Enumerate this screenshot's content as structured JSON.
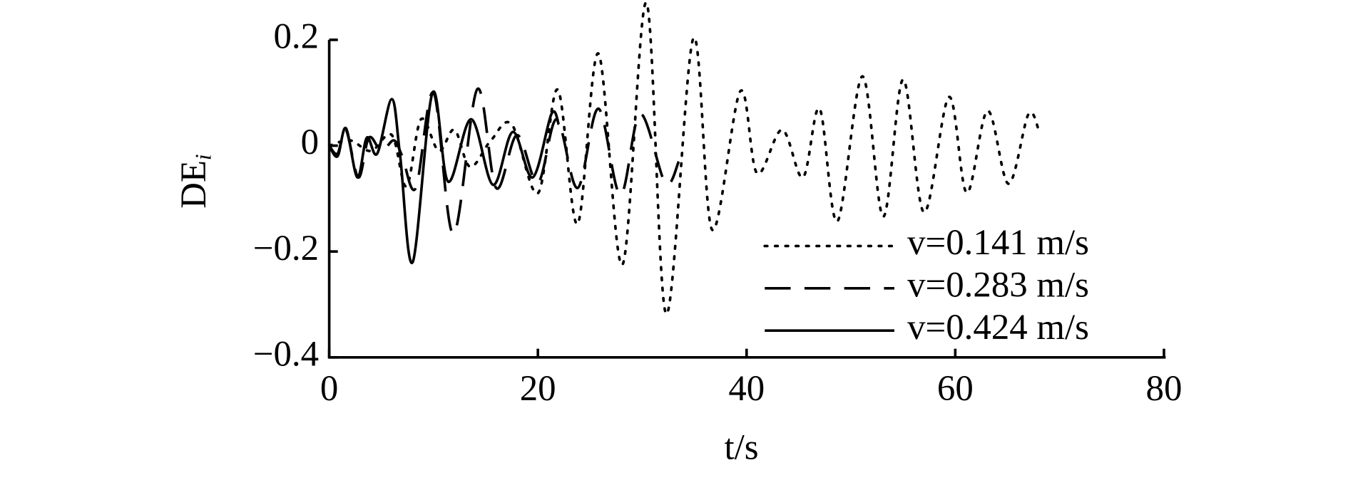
{
  "chart_data": {
    "type": "line",
    "xlabel": "t/s",
    "ylabel": "DE",
    "ylabel_subscript": "i",
    "xlim": [
      0,
      80
    ],
    "xticks": [
      0,
      20,
      40,
      60,
      80
    ],
    "ylim": [
      -0.4,
      0.2
    ],
    "yticks": [
      {
        "value": -0.4,
        "label": "−0.4"
      },
      {
        "value": -0.2,
        "label": "−0.2"
      },
      0,
      0.2
    ],
    "legend": "lower right",
    "grid": false,
    "series": [
      {
        "name": "v=0.141 m/s",
        "style": "dotted",
        "color": "#000000",
        "x": [
          0,
          2,
          4,
          6,
          7.4,
          8.8,
          10.5,
          12,
          13.5,
          15.5,
          17.5,
          20,
          21.9,
          23.8,
          25.8,
          28.1,
          30.4,
          32.3,
          34.9,
          36.7,
          39.4,
          41,
          43.4,
          45.4,
          47,
          48.7,
          51.1,
          53.1,
          55,
          57,
          59.4,
          61.1,
          63.1,
          65.1,
          67,
          68
        ],
        "values": [
          0,
          0.01,
          -0.01,
          0.02,
          -0.077,
          0.05,
          -0.01,
          0.03,
          -0.04,
          0.01,
          0.04,
          -0.09,
          0.106,
          -0.148,
          0.174,
          -0.225,
          0.27,
          -0.318,
          0.203,
          -0.159,
          0.103,
          -0.052,
          0.03,
          -0.06,
          0.07,
          -0.143,
          0.131,
          -0.134,
          0.125,
          -0.126,
          0.092,
          -0.089,
          0.066,
          -0.072,
          0.059,
          0.03
        ]
      },
      {
        "name": "v=0.283 m/s",
        "style": "dashed",
        "color": "#000000",
        "x": [
          0,
          0.8,
          1.6,
          2.8,
          3.8,
          5,
          6.2,
          7,
          8.3,
          10,
          11.9,
          14.2,
          16,
          18,
          20,
          21.8,
          23.8,
          25.8,
          27.9,
          29.8,
          32.2,
          33.5
        ],
        "values": [
          0,
          -0.015,
          0.03,
          -0.06,
          0.015,
          -0.01,
          0.01,
          -0.02,
          -0.08,
          0.1,
          -0.167,
          0.107,
          -0.08,
          0.02,
          -0.07,
          0.05,
          -0.08,
          0.07,
          -0.093,
          0.06,
          -0.07,
          -0.03
        ]
      },
      {
        "name": "v=0.424 m/s",
        "style": "solid",
        "color": "#000000",
        "x": [
          0,
          0.8,
          1.6,
          2.7,
          3.6,
          4.6,
          6,
          6.8,
          8,
          9.9,
          11.4,
          13.6,
          15.7,
          17.6,
          19.5,
          21.3,
          22
        ],
        "values": [
          0,
          -0.02,
          0.033,
          -0.06,
          0.015,
          -0.015,
          0.088,
          -0.02,
          -0.22,
          0.1,
          -0.068,
          0.05,
          -0.074,
          0.026,
          -0.06,
          0.06,
          0.04
        ]
      }
    ]
  }
}
